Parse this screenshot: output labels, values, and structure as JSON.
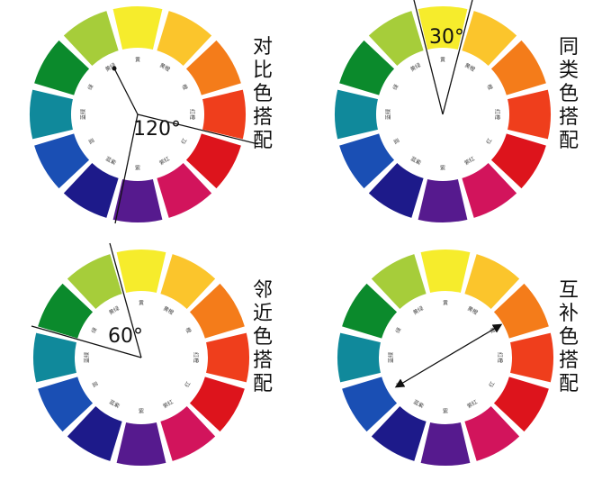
{
  "segments": [
    {
      "name": "黄",
      "color": "#f6ec2c"
    },
    {
      "name": "黄橙",
      "color": "#fbc52c"
    },
    {
      "name": "橙",
      "color": "#f47c1a"
    },
    {
      "name": "红橙",
      "color": "#ef3e1c"
    },
    {
      "name": "红",
      "color": "#dd141c"
    },
    {
      "name": "紫红",
      "color": "#d2145c"
    },
    {
      "name": "紫",
      "color": "#561a8e"
    },
    {
      "name": "蓝紫",
      "color": "#1d1a8a"
    },
    {
      "name": "蓝",
      "color": "#1a4fb4"
    },
    {
      "name": "蓝绿",
      "color": "#10899b"
    },
    {
      "name": "绿",
      "color": "#0b8a2c"
    },
    {
      "name": "黄绿",
      "color": "#a6cd3a"
    }
  ],
  "wheels": [
    {
      "title": "对比色搭配",
      "angle": "120°"
    },
    {
      "title": "同类色搭配",
      "angle": "30°"
    },
    {
      "title": "邻近色搭配",
      "angle": "60°"
    },
    {
      "title": "互补色搭配",
      "angle": ""
    }
  ]
}
